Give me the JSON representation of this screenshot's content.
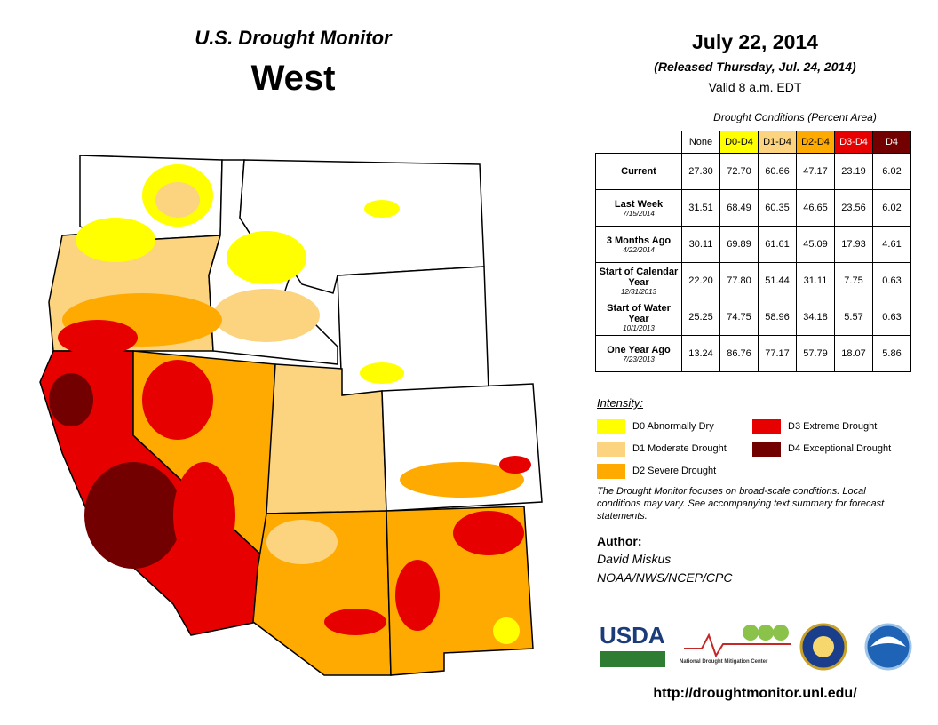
{
  "header": {
    "title": "U.S. Drought Monitor",
    "region": "West",
    "date": "July 22, 2014",
    "released": "(Released Thursday, Jul. 24, 2014)",
    "valid": "Valid  8 a.m. EDT"
  },
  "table": {
    "caption": "Drought Conditions (Percent Area)",
    "columns": [
      {
        "label": "None",
        "color": "#ffffff",
        "text_color": "#000000"
      },
      {
        "label": "D0-D4",
        "color": "#ffff00",
        "text_color": "#000000"
      },
      {
        "label": "D1-D4",
        "color": "#fcd37f",
        "text_color": "#000000"
      },
      {
        "label": "D2-D4",
        "color": "#ffaa00",
        "text_color": "#000000"
      },
      {
        "label": "D3-D4",
        "color": "#e60000",
        "text_color": "#ffffff"
      },
      {
        "label": "D4",
        "color": "#730000",
        "text_color": "#ffffff"
      }
    ],
    "rows": [
      {
        "label": "Current",
        "values": [
          "27.30",
          "72.70",
          "60.66",
          "47.17",
          "23.19",
          "6.02"
        ]
      },
      {
        "label": "Last Week",
        "date": "7/15/2014",
        "values": [
          "31.51",
          "68.49",
          "60.35",
          "46.65",
          "23.56",
          "6.02"
        ]
      },
      {
        "label": "3 Months Ago",
        "date": "4/22/2014",
        "values": [
          "30.11",
          "69.89",
          "61.61",
          "45.09",
          "17.93",
          "4.61"
        ]
      },
      {
        "label": "Start of Calendar Year",
        "date": "12/31/2013",
        "values": [
          "22.20",
          "77.80",
          "51.44",
          "31.11",
          "7.75",
          "0.63"
        ]
      },
      {
        "label": "Start of Water Year",
        "date": "10/1/2013",
        "values": [
          "25.25",
          "74.75",
          "58.96",
          "34.18",
          "5.57",
          "0.63"
        ]
      },
      {
        "label": "One Year Ago",
        "date": "7/23/2013",
        "values": [
          "13.24",
          "86.76",
          "77.17",
          "57.79",
          "18.07",
          "5.86"
        ]
      }
    ]
  },
  "legend": {
    "title": "Intensity:",
    "items": [
      {
        "label": "D0 Abnormally Dry",
        "color": "#ffff00"
      },
      {
        "label": "D1 Moderate Drought",
        "color": "#fcd37f"
      },
      {
        "label": "D2 Severe Drought",
        "color": "#ffaa00"
      },
      {
        "label": "D3 Extreme Drought",
        "color": "#e60000"
      },
      {
        "label": "D4 Exceptional Drought",
        "color": "#730000"
      }
    ]
  },
  "note": "The Drought Monitor focuses on broad-scale conditions. Local conditions may vary. See accompanying text summary for forecast statements.",
  "author": {
    "label": "Author:",
    "name": "David Miskus",
    "org": "NOAA/NWS/NCEP/CPC"
  },
  "logos": {
    "usda": "USDA",
    "ndmc": "National Drought Mitigation Center"
  },
  "url": "http://droughtmonitor.unl.edu/"
}
